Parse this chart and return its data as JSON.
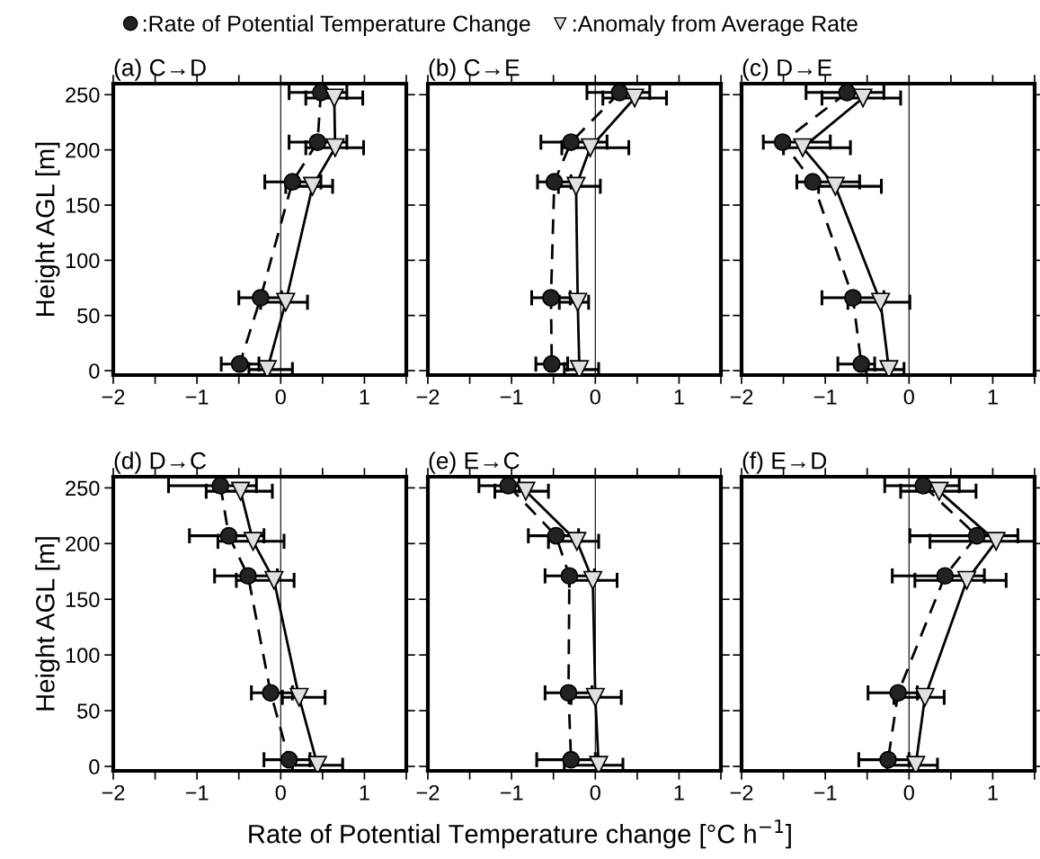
{
  "chart_data": [
    {
      "type": "line",
      "title": "(a) C→D",
      "ylabel": "Height AGL [m]",
      "legend": "top",
      "xlim": [
        -2,
        1.5
      ],
      "ylim": [
        -4,
        260
      ],
      "xticks": [
        -2,
        {
          "value": -1.5,
          "label": null
        },
        -1,
        {
          "value": -0.5,
          "label": null
        },
        0,
        {
          "value": 0.5,
          "label": null
        },
        1,
        {
          "value": 1.5,
          "label": null
        }
      ],
      "yticks": [
        0,
        50,
        100,
        150,
        200,
        250
      ],
      "ref_lines": [
        {
          "axis": "x",
          "value": 0
        }
      ],
      "series": [
        {
          "name": ":Rate of Potential Temperature Change",
          "color": "#222222",
          "marker": "circle",
          "line_style": "dashed",
          "x": [
            0.48,
            0.44,
            0.14,
            -0.24,
            -0.49
          ],
          "values": [
            252,
            207,
            171,
            66,
            6
          ],
          "xerrors": [
            [
              0.1,
              0.79
            ],
            [
              0.1,
              0.79
            ],
            [
              -0.19,
              0.48
            ],
            [
              -0.5,
              0.01
            ],
            [
              -0.71,
              -0.26
            ]
          ]
        },
        {
          "name": ":Anomaly from Average Rate",
          "color": "#e0e0e0",
          "marker": "triangle",
          "line_style": "solid",
          "x": [
            0.64,
            0.65,
            0.38,
            0.06,
            -0.16
          ],
          "values": [
            247,
            202,
            167,
            62,
            1
          ],
          "xerrors": [
            [
              0.3,
              0.98
            ],
            [
              0.3,
              0.99
            ],
            [
              0.06,
              0.62
            ],
            [
              -0.24,
              0.32
            ],
            [
              -0.38,
              0.14
            ]
          ]
        }
      ]
    },
    {
      "type": "line",
      "title": "(b) C→E",
      "tick_labels": "x",
      "xlim": [
        -2,
        1.5
      ],
      "ylim": [
        -4,
        260
      ],
      "xticks": [
        -2,
        {
          "value": -1.5,
          "label": null
        },
        -1,
        {
          "value": -0.5,
          "label": null
        },
        0,
        {
          "value": 0.5,
          "label": null
        },
        1,
        {
          "value": 1.5,
          "label": null
        }
      ],
      "yticks": [
        0,
        50,
        100,
        150,
        200,
        250
      ],
      "ref_lines": [
        {
          "axis": "x",
          "value": 0
        }
      ],
      "series": [
        {
          "color": "#222222",
          "marker": "circle",
          "line_style": "dashed",
          "x": [
            0.29,
            -0.29,
            -0.49,
            -0.53,
            -0.52
          ],
          "values": [
            252,
            207,
            171,
            66,
            6
          ],
          "xerrors": [
            [
              -0.1,
              0.65
            ],
            [
              -0.65,
              0.14
            ],
            [
              -0.69,
              -0.29
            ],
            [
              -0.76,
              -0.3
            ],
            [
              -0.71,
              -0.33
            ]
          ]
        },
        {
          "color": "#e0e0e0",
          "marker": "triangle",
          "line_style": "solid",
          "x": [
            0.47,
            -0.06,
            -0.23,
            -0.21,
            -0.19
          ],
          "values": [
            247,
            202,
            167,
            62,
            1
          ],
          "xerrors": [
            [
              0.09,
              0.85
            ],
            [
              -0.4,
              0.4
            ],
            [
              -0.44,
              0.06
            ],
            [
              -0.43,
              -0.08
            ],
            [
              -0.37,
              0.04
            ]
          ]
        }
      ]
    },
    {
      "type": "line",
      "title": "(c) D→E",
      "tick_labels": "x",
      "xlim": [
        -2,
        1.5
      ],
      "ylim": [
        -4,
        260
      ],
      "xticks": [
        -2,
        {
          "value": -1.5,
          "label": null
        },
        -1,
        {
          "value": -0.5,
          "label": null
        },
        0,
        {
          "value": 0.5,
          "label": null
        },
        1,
        {
          "value": 1.5,
          "label": null
        }
      ],
      "yticks": [
        0,
        50,
        100,
        150,
        200,
        250
      ],
      "ref_lines": [
        {
          "axis": "x",
          "value": 0
        }
      ],
      "series": [
        {
          "color": "#222222",
          "marker": "circle",
          "line_style": "dashed",
          "x": [
            -0.74,
            -1.51,
            -1.15,
            -0.67,
            -0.57
          ],
          "values": [
            252,
            207,
            171,
            66,
            6
          ],
          "xerrors": [
            [
              -1.23,
              -0.3
            ],
            [
              -1.74,
              -0.94
            ],
            [
              -1.34,
              -0.59
            ],
            [
              -1.04,
              -0.3
            ],
            [
              -0.85,
              -0.41
            ]
          ]
        },
        {
          "color": "#e0e0e0",
          "marker": "triangle",
          "line_style": "solid",
          "x": [
            -0.55,
            -1.27,
            -0.88,
            -0.34,
            -0.24
          ],
          "values": [
            247,
            202,
            167,
            62,
            1
          ],
          "xerrors": [
            [
              -1.04,
              -0.1
            ],
            [
              -1.5,
              -0.7
            ],
            [
              -1.08,
              -0.33
            ],
            [
              -0.73,
              0.01
            ],
            [
              -0.51,
              -0.06
            ]
          ]
        }
      ]
    },
    {
      "type": "line",
      "title": "(d) D→C",
      "ylabel": "Height AGL [m]",
      "xlim": [
        -2,
        1.5
      ],
      "ylim": [
        -4,
        260
      ],
      "xticks": [
        -2,
        {
          "value": -1.5,
          "label": null
        },
        -1,
        {
          "value": -0.5,
          "label": null
        },
        0,
        {
          "value": 0.5,
          "label": null
        },
        1,
        {
          "value": 1.5,
          "label": null
        }
      ],
      "yticks": [
        0,
        50,
        100,
        150,
        200,
        250
      ],
      "ref_lines": [
        {
          "axis": "x",
          "value": 0
        }
      ],
      "series": [
        {
          "color": "#222222",
          "marker": "circle",
          "line_style": "dashed",
          "x": [
            -0.72,
            -0.62,
            -0.39,
            -0.12,
            0.1
          ],
          "values": [
            252,
            207,
            171,
            66,
            6
          ],
          "xerrors": [
            [
              -1.34,
              -0.29
            ],
            [
              -1.09,
              -0.2
            ],
            [
              -0.79,
              -0.04
            ],
            [
              -0.35,
              0.14
            ],
            [
              -0.2,
              0.35
            ]
          ]
        },
        {
          "color": "#e0e0e0",
          "marker": "triangle",
          "line_style": "solid",
          "x": [
            -0.48,
            -0.33,
            -0.08,
            0.22,
            0.44
          ],
          "values": [
            247,
            202,
            167,
            62,
            1
          ],
          "xerrors": [
            [
              -0.89,
              -0.1
            ],
            [
              -0.75,
              0.04
            ],
            [
              -0.53,
              0.16
            ],
            [
              0.02,
              0.53
            ],
            [
              0.14,
              0.74
            ]
          ]
        }
      ]
    },
    {
      "type": "line",
      "title": "(e) E→C",
      "xlabel": "Rate of Potential Temperature change [°C h$^{−1}$]",
      "tick_labels": "x",
      "xlim": [
        -2,
        1.5
      ],
      "ylim": [
        -4,
        260
      ],
      "xticks": [
        -2,
        {
          "value": -1.5,
          "label": null
        },
        -1,
        {
          "value": -0.5,
          "label": null
        },
        0,
        {
          "value": 0.5,
          "label": null
        },
        1,
        {
          "value": 1.5,
          "label": null
        }
      ],
      "yticks": [
        0,
        50,
        100,
        150,
        200,
        250
      ],
      "ref_lines": [
        {
          "axis": "x",
          "value": 0
        }
      ],
      "series": [
        {
          "color": "#222222",
          "marker": "circle",
          "line_style": "dashed",
          "x": [
            -1.04,
            -0.47,
            -0.31,
            -0.32,
            -0.29
          ],
          "values": [
            252,
            207,
            171,
            66,
            6
          ],
          "xerrors": [
            [
              -1.39,
              -0.91
            ],
            [
              -0.8,
              -0.2
            ],
            [
              -0.6,
              -0.01
            ],
            0.28,
            [
              -0.7,
              0.0
            ]
          ]
        },
        {
          "color": "#e0e0e0",
          "marker": "triangle",
          "line_style": "solid",
          "x": [
            -0.83,
            -0.22,
            -0.03,
            0.0,
            0.04
          ],
          "values": [
            247,
            202,
            167,
            62,
            1
          ],
          "xerrors": [
            [
              -1.2,
              -0.56
            ],
            [
              -0.56,
              0.04
            ],
            [
              -0.31,
              0.26
            ],
            [
              -0.29,
              0.31
            ],
            [
              -0.37,
              0.33
            ]
          ]
        }
      ]
    },
    {
      "type": "line",
      "title": "(f) E→D",
      "tick_labels": "x",
      "xlim": [
        -2,
        1.5
      ],
      "ylim": [
        -4,
        260
      ],
      "xticks": [
        -2,
        {
          "value": -1.5,
          "label": null
        },
        -1,
        {
          "value": -0.5,
          "label": null
        },
        0,
        {
          "value": 0.5,
          "label": null
        },
        1,
        {
          "value": 1.5,
          "label": null
        }
      ],
      "yticks": [
        0,
        50,
        100,
        150,
        200,
        250
      ],
      "ref_lines": [
        {
          "axis": "x",
          "value": 0
        }
      ],
      "series": [
        {
          "color": "#222222",
          "marker": "circle",
          "line_style": "dashed",
          "x": [
            0.17,
            0.81,
            0.43,
            -0.13,
            -0.25
          ],
          "values": [
            252,
            207,
            171,
            66,
            6
          ],
          "xerrors": [
            [
              -0.29,
              0.6
            ],
            [
              0.01,
              1.3
            ],
            [
              -0.2,
              0.9
            ],
            [
              -0.49,
              0.1
            ],
            [
              -0.6,
              0.0
            ]
          ]
        },
        {
          "color": "#e0e0e0",
          "marker": "triangle",
          "line_style": "solid",
          "x": [
            0.36,
            1.04,
            0.69,
            0.19,
            0.08
          ],
          "values": [
            247,
            202,
            167,
            62,
            1
          ],
          "xerrors": [
            [
              -0.1,
              0.8
            ],
            [
              0.25,
              1.5
            ],
            [
              0.07,
              1.16
            ],
            [
              -0.18,
              0.42
            ],
            [
              -0.26,
              0.34
            ]
          ]
        }
      ]
    }
  ]
}
